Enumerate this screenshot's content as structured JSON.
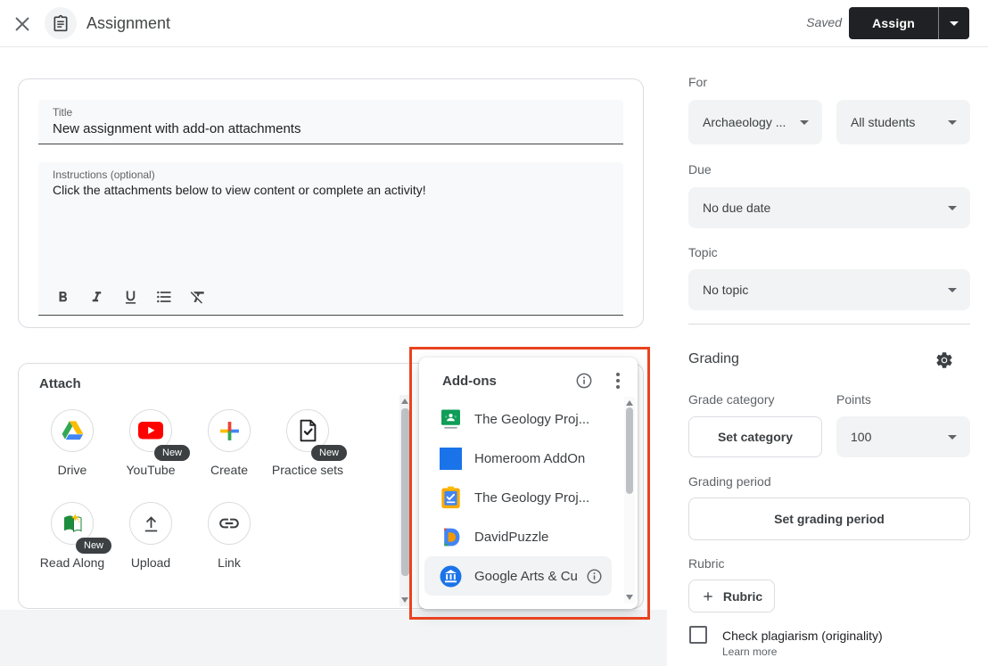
{
  "header": {
    "title": "Assignment",
    "saved": "Saved",
    "assign": "Assign"
  },
  "form": {
    "title_label": "Title",
    "title_value": "New assignment with add-on attachments",
    "instructions_label": "Instructions (optional)",
    "instructions_value": "Click the attachments below to view content or complete an activity!",
    "toolbar": [
      "bold",
      "italic",
      "underline",
      "bulleted-list",
      "clear-formatting"
    ]
  },
  "attach": {
    "label": "Attach",
    "items": [
      {
        "label": "Drive",
        "icon": "drive",
        "badge": null
      },
      {
        "label": "YouTube",
        "icon": "youtube",
        "badge": "New"
      },
      {
        "label": "Create",
        "icon": "create",
        "badge": null
      },
      {
        "label": "Practice sets",
        "icon": "practice-sets",
        "badge": "New"
      },
      {
        "label": "Read Along",
        "icon": "read-along",
        "badge": "New"
      },
      {
        "label": "Upload",
        "icon": "upload",
        "badge": null
      },
      {
        "label": "Link",
        "icon": "link",
        "badge": null
      }
    ]
  },
  "addons": {
    "title": "Add-ons",
    "items": [
      {
        "label": "The Geology Proj...",
        "icon": "classroom",
        "highlighted": false,
        "info": false
      },
      {
        "label": "Homeroom AddOn",
        "icon": "homeroom",
        "highlighted": false,
        "info": false
      },
      {
        "label": "The Geology Proj...",
        "icon": "clipboard",
        "highlighted": false,
        "info": false
      },
      {
        "label": "DavidPuzzle",
        "icon": "davidpuzzle",
        "highlighted": false,
        "info": false
      },
      {
        "label": "Google Arts & Cu",
        "icon": "arts-culture",
        "highlighted": true,
        "info": true
      }
    ]
  },
  "sidebar": {
    "for_label": "For",
    "class_value": "Archaeology ...",
    "students_value": "All students",
    "due_label": "Due",
    "due_value": "No due date",
    "topic_label": "Topic",
    "topic_value": "No topic",
    "grading_label": "Grading",
    "grade_category_label": "Grade category",
    "grade_category_button": "Set category",
    "points_label": "Points",
    "points_value": "100",
    "grading_period_label": "Grading period",
    "grading_period_button": "Set grading period",
    "rubric_label": "Rubric",
    "rubric_button": "Rubric",
    "plagiarism_label": "Check plagiarism (originality)",
    "learn_more": "Learn more"
  },
  "colors": {
    "annotation": "#e8431f",
    "assign_button": "#202124",
    "badge": "#3c4043"
  }
}
